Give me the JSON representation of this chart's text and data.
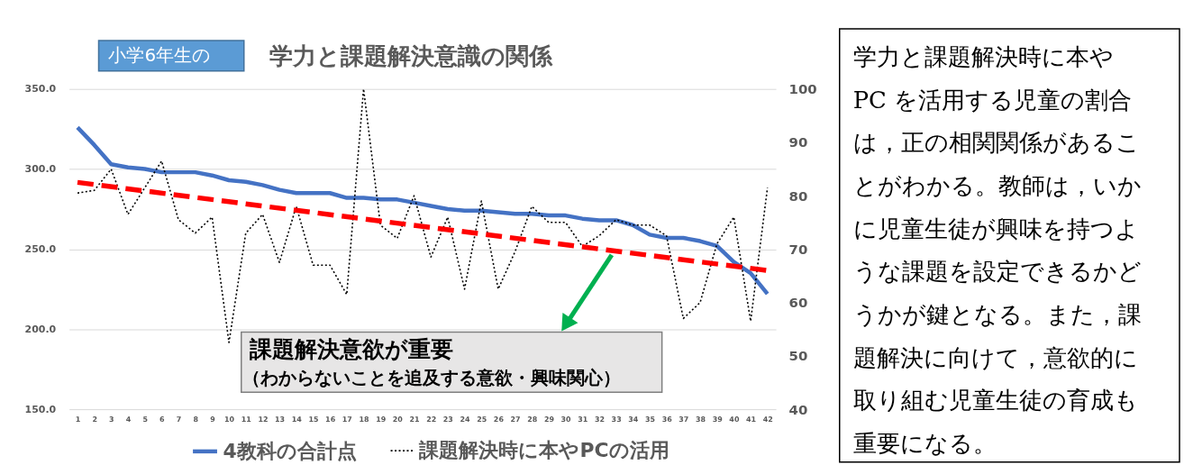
{
  "chart_data": [
    {
      "type": "line",
      "title": "学力と課題解決意識の関係",
      "x": [
        1,
        2,
        3,
        4,
        5,
        6,
        7,
        8,
        9,
        10,
        11,
        12,
        13,
        14,
        15,
        16,
        17,
        18,
        19,
        20,
        21,
        22,
        23,
        24,
        25,
        26,
        27,
        28,
        29,
        30,
        31,
        32,
        33,
        34,
        35,
        36,
        37,
        38,
        39,
        40,
        41,
        42
      ],
      "xlim": [
        0.5,
        42.5
      ],
      "xticks": [
        1,
        2,
        3,
        4,
        5,
        6,
        7,
        8,
        9,
        10,
        11,
        12,
        13,
        14,
        15,
        16,
        17,
        18,
        19,
        20,
        21,
        22,
        23,
        24,
        25,
        26,
        27,
        28,
        29,
        30,
        31,
        32,
        33,
        34,
        35,
        36,
        37,
        38,
        39,
        40,
        41,
        42
      ],
      "ylim": [
        150,
        350
      ],
      "yticks": [
        {
          "value": 150,
          "label": "150.0"
        },
        {
          "value": 200,
          "label": "200.0"
        },
        {
          "value": 250,
          "label": "250.0"
        },
        {
          "value": 300,
          "label": "300.0"
        },
        {
          "value": 350,
          "label": "350.0"
        }
      ],
      "y2lim": [
        40,
        100
      ],
      "y2ticks": [
        40,
        50,
        60,
        70,
        80,
        90,
        100
      ],
      "grid": "y",
      "legend": "bottom",
      "series": [
        {
          "name": "4教科の合計点",
          "color": "#4472c4",
          "line_style": "solid",
          "values": [
            326,
            315,
            303,
            301,
            300,
            298,
            298,
            298,
            296,
            293,
            292,
            290,
            287,
            285,
            285,
            285,
            282,
            282,
            281,
            281,
            279,
            277,
            275,
            274,
            274,
            273,
            272,
            272,
            271,
            271,
            269,
            268,
            268,
            265,
            259,
            257,
            257,
            255,
            252,
            242,
            235,
            222
          ]
        },
        {
          "name": "課題解決時に本やPCの活用",
          "color": "#000000",
          "axis": "y2",
          "line_style": "dotted",
          "values": [
            80.5,
            81,
            85,
            76.5,
            81.5,
            86.5,
            75.5,
            73,
            76,
            52.5,
            73,
            76.5,
            67.5,
            78,
            67,
            67,
            61.5,
            100,
            74.5,
            72,
            80,
            68.5,
            76,
            62.5,
            79,
            62.5,
            69.5,
            78,
            75,
            75,
            70.5,
            72.5,
            75.5,
            74.5,
            74.5,
            72.5,
            57,
            60,
            71,
            76,
            56.5,
            81.5
          ]
        },
        {
          "type": "line",
          "color": "#ff0000",
          "axis": "y2",
          "line_style": "dashed",
          "x": [
            1,
            42
          ],
          "values": [
            82.5,
            66
          ]
        }
      ],
      "annotations": [
        "小学6年生の",
        "課題解決意欲が重要",
        "（わからないことを追及する意欲・興味関心）"
      ]
    },
    {
      "type": "other",
      "annotations": [
        "学力と課題解決時に本や",
        "PC を活用する児童の割合",
        "は，正の相関関係があるこ",
        "とがわかる。教師は，いか",
        "に児童生徒が興味を持つよ",
        "うな課題を設定できるかど",
        "うかが鍵となる。また，課",
        "題解決に向けて，意欲的に",
        "取り組む児童生徒の育成も",
        "重要になる。"
      ]
    }
  ]
}
